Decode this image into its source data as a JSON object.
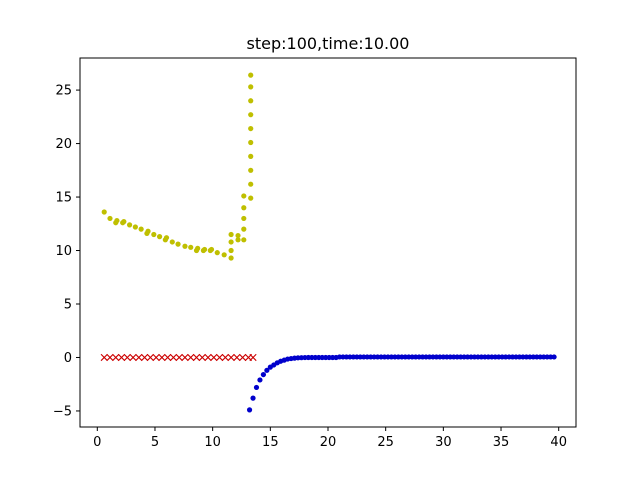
{
  "chart_data": {
    "type": "scatter",
    "title": "step:100,time:10.00",
    "xlabel": "",
    "ylabel": "",
    "xlim": [
      -1.5,
      41.5
    ],
    "ylim": [
      -6.5,
      28.0
    ],
    "xticks": [
      0,
      5,
      10,
      15,
      20,
      25,
      30,
      35,
      40
    ],
    "xtick_labels": [
      "0",
      "5",
      "10",
      "15",
      "20",
      "25",
      "30",
      "35",
      "40"
    ],
    "yticks": [
      -5,
      0,
      5,
      10,
      15,
      20,
      25
    ],
    "ytick_labels": [
      "−5",
      "0",
      "5",
      "10",
      "15",
      "20",
      "25"
    ],
    "grid": false,
    "series": [
      {
        "marker": "dot",
        "color": "#bfbf00",
        "points": [
          [
            0.6,
            13.6
          ],
          [
            1.1,
            13.0
          ],
          [
            1.6,
            12.6
          ],
          [
            1.7,
            12.8
          ],
          [
            2.2,
            12.6
          ],
          [
            2.3,
            12.7
          ],
          [
            2.8,
            12.4
          ],
          [
            3.3,
            12.2
          ],
          [
            3.8,
            12.0
          ],
          [
            4.3,
            11.6
          ],
          [
            4.4,
            11.8
          ],
          [
            4.9,
            11.5
          ],
          [
            5.4,
            11.3
          ],
          [
            5.9,
            11.0
          ],
          [
            6.0,
            11.2
          ],
          [
            6.5,
            10.8
          ],
          [
            7.0,
            10.6
          ],
          [
            7.6,
            10.4
          ],
          [
            8.1,
            10.3
          ],
          [
            8.6,
            10.0
          ],
          [
            8.7,
            10.2
          ],
          [
            9.2,
            10.0
          ],
          [
            9.3,
            10.1
          ],
          [
            9.8,
            10.0
          ],
          [
            9.9,
            10.1
          ],
          [
            10.4,
            9.8
          ],
          [
            11.0,
            9.6
          ],
          [
            11.6,
            9.3
          ],
          [
            11.6,
            10.0
          ],
          [
            11.6,
            10.8
          ],
          [
            11.6,
            11.5
          ],
          [
            12.2,
            11.0
          ],
          [
            12.2,
            11.4
          ],
          [
            12.7,
            11.0
          ],
          [
            12.7,
            12.0
          ],
          [
            12.7,
            13.0
          ],
          [
            12.7,
            14.0
          ],
          [
            12.7,
            15.1
          ],
          [
            13.3,
            14.9
          ],
          [
            13.3,
            16.2
          ],
          [
            13.3,
            17.5
          ],
          [
            13.3,
            18.8
          ],
          [
            13.3,
            20.1
          ],
          [
            13.3,
            21.4
          ],
          [
            13.3,
            22.7
          ],
          [
            13.3,
            24.0
          ],
          [
            13.3,
            25.3
          ],
          [
            13.3,
            26.4
          ]
        ]
      },
      {
        "marker": "x",
        "color": "#cc0000",
        "points": [
          [
            0.6,
            0.0
          ],
          [
            1.1,
            0.0
          ],
          [
            1.6,
            0.0
          ],
          [
            2.1,
            0.0
          ],
          [
            2.6,
            0.0
          ],
          [
            3.1,
            0.0
          ],
          [
            3.6,
            0.0
          ],
          [
            4.1,
            0.0
          ],
          [
            4.6,
            0.0
          ],
          [
            5.1,
            0.0
          ],
          [
            5.6,
            0.0
          ],
          [
            6.1,
            0.0
          ],
          [
            6.6,
            0.0
          ],
          [
            7.1,
            0.0
          ],
          [
            7.6,
            0.0
          ],
          [
            8.1,
            0.0
          ],
          [
            8.6,
            0.0
          ],
          [
            9.1,
            0.0
          ],
          [
            9.6,
            0.0
          ],
          [
            10.1,
            0.0
          ],
          [
            10.6,
            0.0
          ],
          [
            11.1,
            0.0
          ],
          [
            11.6,
            0.0
          ],
          [
            12.1,
            0.0
          ],
          [
            12.6,
            0.0
          ],
          [
            13.1,
            0.0
          ],
          [
            13.5,
            0.0
          ]
        ]
      },
      {
        "marker": "dot",
        "color": "#0000cc",
        "points": [
          [
            13.2,
            -4.9
          ],
          [
            13.5,
            -3.8
          ],
          [
            13.8,
            -2.8
          ],
          [
            14.1,
            -2.1
          ],
          [
            14.4,
            -1.6
          ],
          [
            14.7,
            -1.2
          ],
          [
            15.0,
            -0.9
          ],
          [
            15.3,
            -0.7
          ],
          [
            15.6,
            -0.5
          ],
          [
            15.9,
            -0.35
          ],
          [
            16.2,
            -0.25
          ],
          [
            16.5,
            -0.15
          ],
          [
            16.8,
            -0.1
          ],
          [
            17.1,
            -0.06
          ],
          [
            17.4,
            -0.03
          ],
          [
            17.7,
            -0.02
          ],
          [
            18.0,
            -0.01
          ],
          [
            18.3,
            0.0
          ],
          [
            18.6,
            0.0
          ],
          [
            18.9,
            0.0
          ],
          [
            19.2,
            0.0
          ],
          [
            19.5,
            0.0
          ],
          [
            19.8,
            0.0
          ],
          [
            20.1,
            0.0
          ],
          [
            20.4,
            0.0
          ],
          [
            20.7,
            0.0
          ],
          [
            21.0,
            0.05
          ],
          [
            21.3,
            0.05
          ],
          [
            21.6,
            0.05
          ],
          [
            21.9,
            0.05
          ],
          [
            22.2,
            0.05
          ],
          [
            22.5,
            0.05
          ],
          [
            22.8,
            0.05
          ],
          [
            23.1,
            0.05
          ],
          [
            23.4,
            0.05
          ],
          [
            23.7,
            0.05
          ],
          [
            24.0,
            0.05
          ],
          [
            24.3,
            0.05
          ],
          [
            24.6,
            0.05
          ],
          [
            24.9,
            0.05
          ],
          [
            25.2,
            0.05
          ],
          [
            25.5,
            0.05
          ],
          [
            25.8,
            0.05
          ],
          [
            26.1,
            0.05
          ],
          [
            26.4,
            0.05
          ],
          [
            26.7,
            0.05
          ],
          [
            27.0,
            0.05
          ],
          [
            27.3,
            0.05
          ],
          [
            27.6,
            0.05
          ],
          [
            27.9,
            0.05
          ],
          [
            28.2,
            0.05
          ],
          [
            28.5,
            0.05
          ],
          [
            28.8,
            0.05
          ],
          [
            29.1,
            0.05
          ],
          [
            29.4,
            0.05
          ],
          [
            29.7,
            0.05
          ],
          [
            30.0,
            0.05
          ],
          [
            30.3,
            0.05
          ],
          [
            30.6,
            0.05
          ],
          [
            30.9,
            0.05
          ],
          [
            31.2,
            0.05
          ],
          [
            31.5,
            0.05
          ],
          [
            31.8,
            0.05
          ],
          [
            32.1,
            0.05
          ],
          [
            32.4,
            0.05
          ],
          [
            32.7,
            0.05
          ],
          [
            33.0,
            0.05
          ],
          [
            33.3,
            0.05
          ],
          [
            33.6,
            0.05
          ],
          [
            33.9,
            0.05
          ],
          [
            34.2,
            0.05
          ],
          [
            34.5,
            0.05
          ],
          [
            34.8,
            0.05
          ],
          [
            35.1,
            0.05
          ],
          [
            35.4,
            0.05
          ],
          [
            35.7,
            0.05
          ],
          [
            36.0,
            0.05
          ],
          [
            36.3,
            0.05
          ],
          [
            36.6,
            0.05
          ],
          [
            36.9,
            0.05
          ],
          [
            37.2,
            0.05
          ],
          [
            37.5,
            0.05
          ],
          [
            37.8,
            0.05
          ],
          [
            38.1,
            0.05
          ],
          [
            38.4,
            0.05
          ],
          [
            38.7,
            0.05
          ],
          [
            39.0,
            0.05
          ],
          [
            39.3,
            0.05
          ],
          [
            39.6,
            0.05
          ]
        ]
      }
    ]
  }
}
